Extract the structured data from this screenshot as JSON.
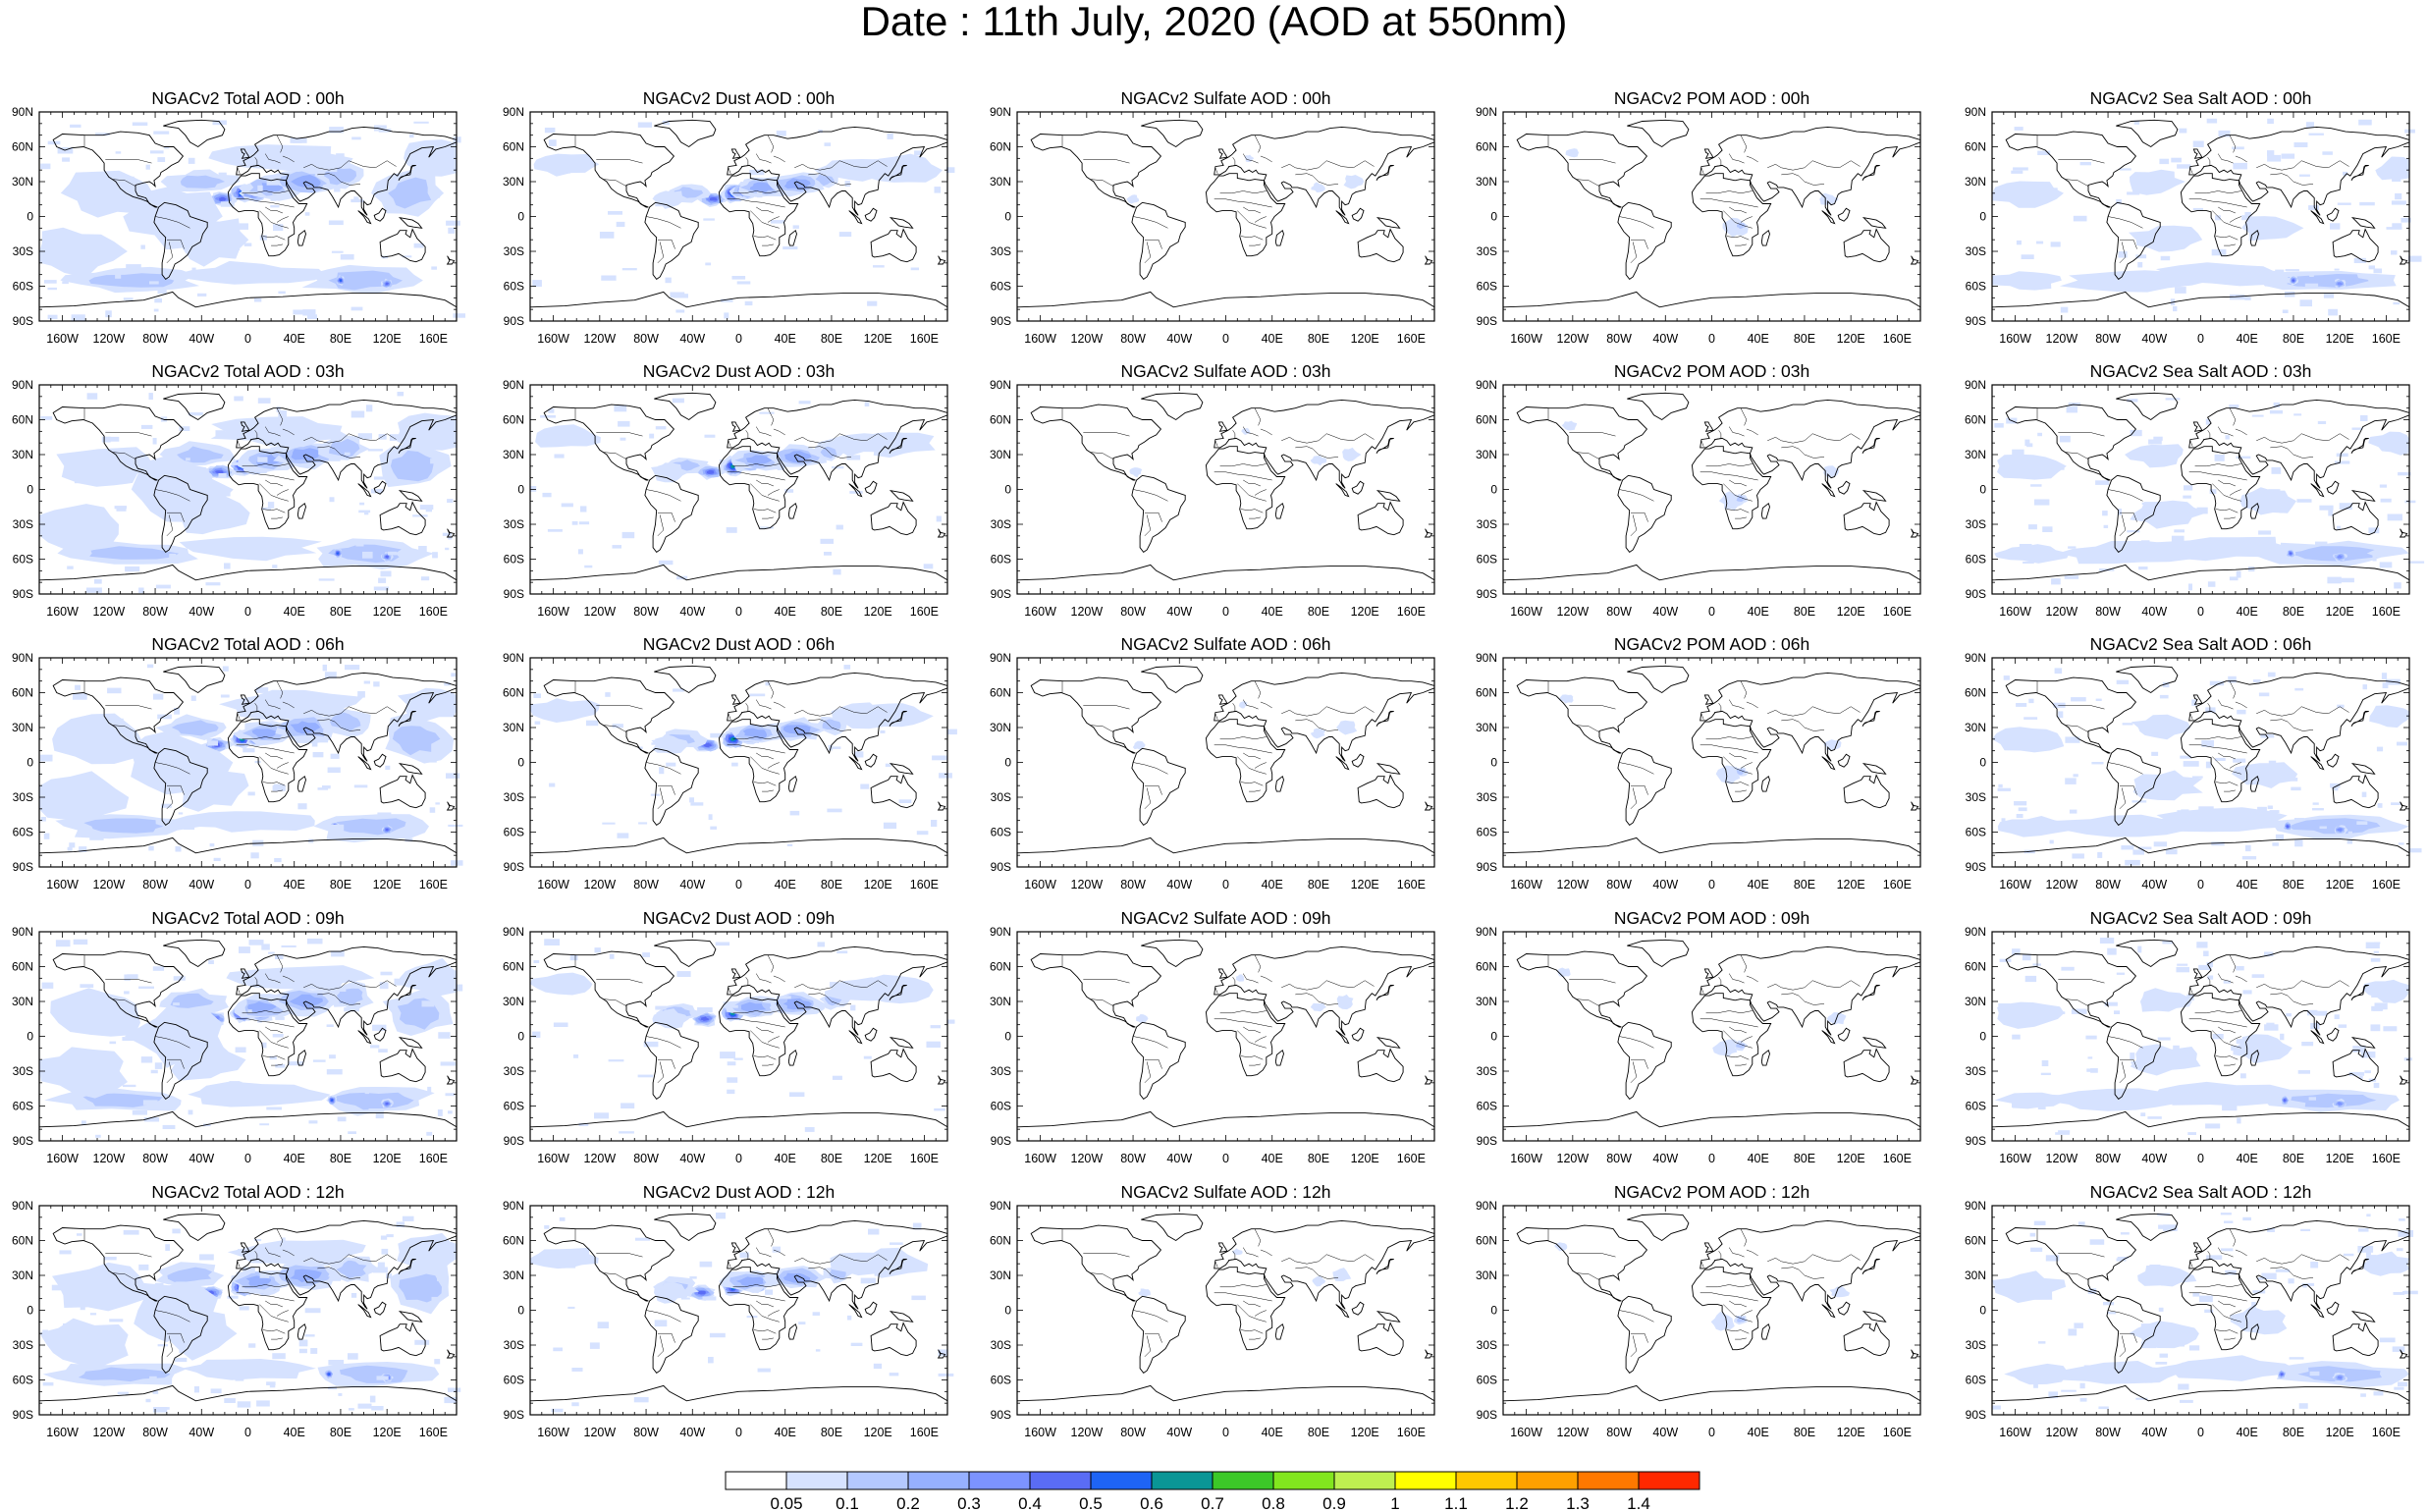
{
  "figure": {
    "title": "Date : 11th July, 2020 (AOD at 550nm)",
    "lat_labels": [
      "90N",
      "60N",
      "30N",
      "0",
      "30S",
      "60S",
      "90S"
    ],
    "lon_labels": [
      "160W",
      "120W",
      "80W",
      "40W",
      "0",
      "40E",
      "80E",
      "120E",
      "160E"
    ],
    "lat_values": [
      90,
      60,
      30,
      0,
      -30,
      -60,
      -90
    ],
    "lon_values": [
      -160,
      -120,
      -80,
      -40,
      0,
      40,
      80,
      120,
      160
    ],
    "panels": [
      {
        "title": "NGACv2 Total AOD : 00h",
        "species": "total"
      },
      {
        "title": "NGACv2 Dust AOD : 00h",
        "species": "dust"
      },
      {
        "title": "NGACv2 Sulfate AOD : 00h",
        "species": "sulfate"
      },
      {
        "title": "NGACv2 POM AOD : 00h",
        "species": "pom"
      },
      {
        "title": "NGACv2 Sea Salt AOD : 00h",
        "species": "seasalt"
      },
      {
        "title": "NGACv2 Total AOD : 03h",
        "species": "total"
      },
      {
        "title": "NGACv2 Dust AOD : 03h",
        "species": "dust"
      },
      {
        "title": "NGACv2 Sulfate AOD : 03h",
        "species": "sulfate"
      },
      {
        "title": "NGACv2 POM AOD : 03h",
        "species": "pom"
      },
      {
        "title": "NGACv2 Sea Salt AOD : 03h",
        "species": "seasalt"
      },
      {
        "title": "NGACv2 Total AOD : 06h",
        "species": "total"
      },
      {
        "title": "NGACv2 Dust AOD : 06h",
        "species": "dust"
      },
      {
        "title": "NGACv2 Sulfate AOD : 06h",
        "species": "sulfate"
      },
      {
        "title": "NGACv2 POM AOD : 06h",
        "species": "pom"
      },
      {
        "title": "NGACv2 Sea Salt AOD : 06h",
        "species": "seasalt"
      },
      {
        "title": "NGACv2 Total AOD : 09h",
        "species": "total"
      },
      {
        "title": "NGACv2 Dust AOD : 09h",
        "species": "dust"
      },
      {
        "title": "NGACv2 Sulfate AOD : 09h",
        "species": "sulfate"
      },
      {
        "title": "NGACv2 POM AOD : 09h",
        "species": "pom"
      },
      {
        "title": "NGACv2 Sea Salt  AOD : 09h",
        "species": "seasalt"
      },
      {
        "title": "NGACv2 Total AOD : 12h",
        "species": "total"
      },
      {
        "title": "NGACv2 Dust AOD : 12h",
        "species": "dust"
      },
      {
        "title": "NGACv2 Sulfate AOD : 12h",
        "species": "sulfate"
      },
      {
        "title": "NGACv2 POM  AOD : 12h",
        "species": "pom"
      },
      {
        "title": "NGACv2 Sea Salt  AOD : 12h",
        "species": "seasalt"
      }
    ],
    "colorbar": {
      "labels": [
        "0.05",
        "0.1",
        "0.2",
        "0.3",
        "0.4",
        "0.5",
        "0.6",
        "0.7",
        "0.8",
        "0.9",
        "1",
        "1.1",
        "1.2",
        "1.3",
        "1.4"
      ],
      "colors": [
        "#ffffff",
        "#d6e2ff",
        "#b4c8ff",
        "#96b0ff",
        "#7c93ff",
        "#5a6cf5",
        "#1e64f5",
        "#0a9696",
        "#3cc828",
        "#82e61e",
        "#bef050",
        "#ffff00",
        "#ffc800",
        "#ffa000",
        "#ff7800",
        "#ff2800"
      ]
    }
  }
}
